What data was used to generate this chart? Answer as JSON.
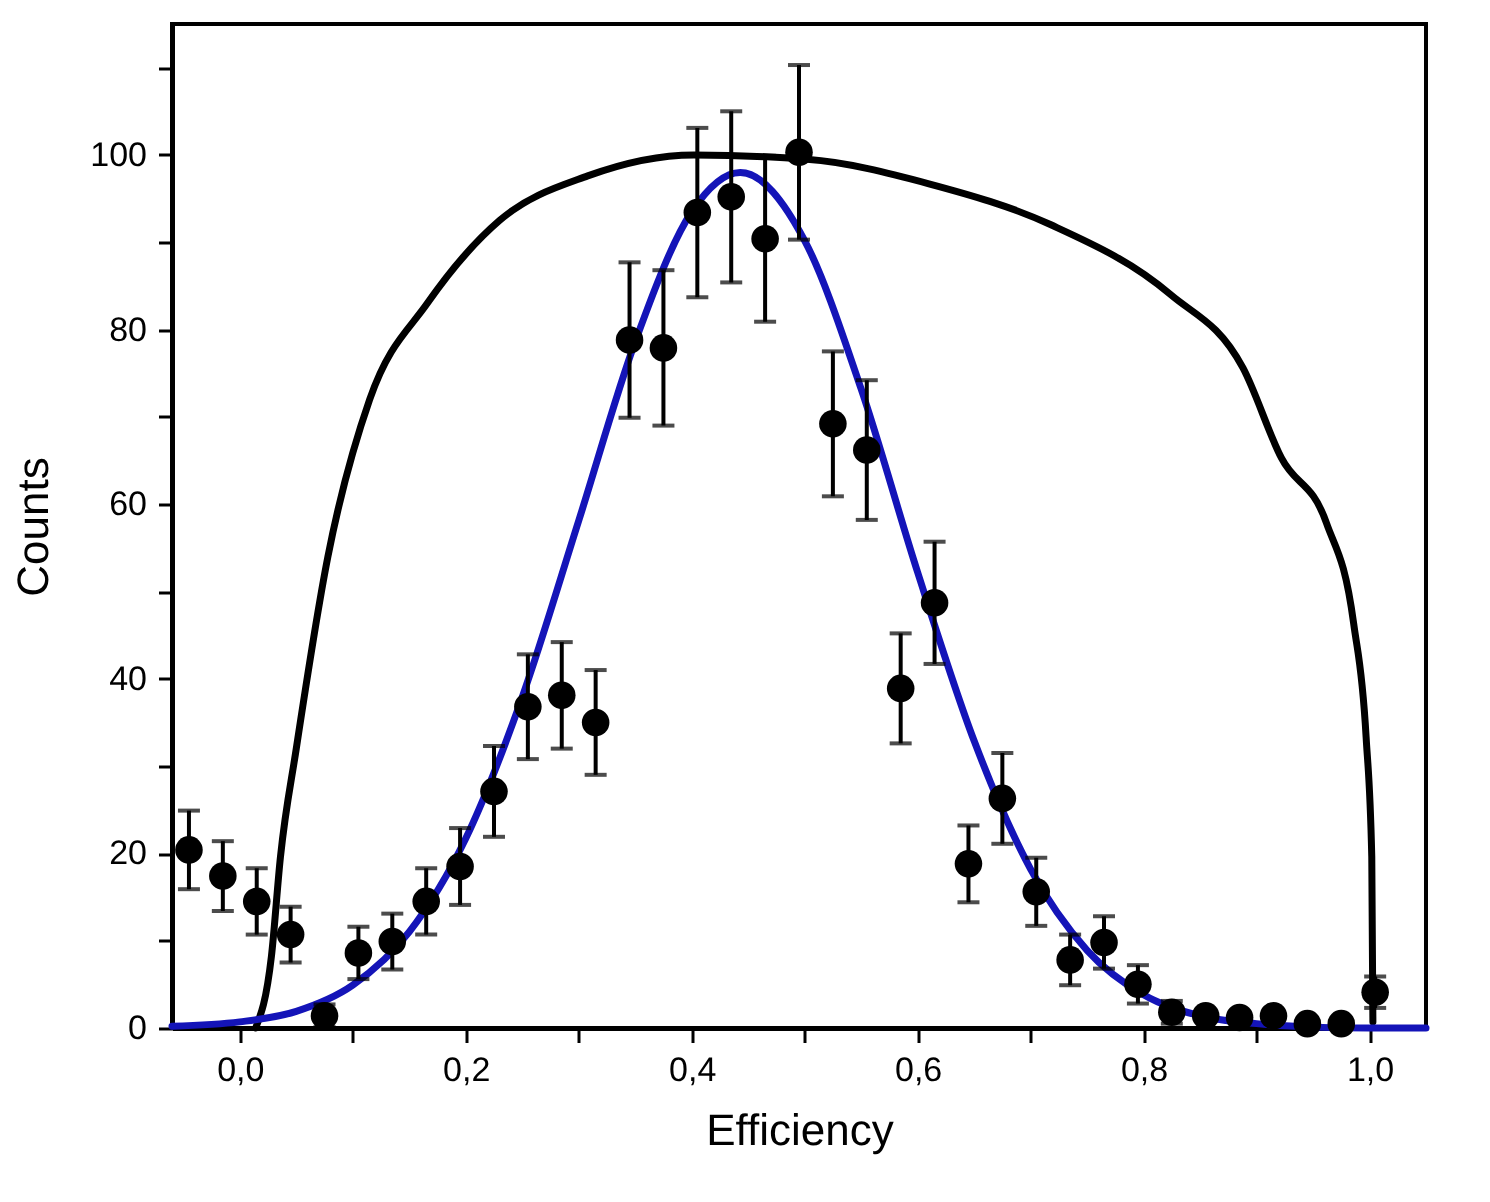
{
  "chart_data": {
    "type": "scatter",
    "xlabel": "Efficiency",
    "ylabel": "Counts",
    "xlim": [
      -0.06,
      1.05
    ],
    "ylim": [
      0,
      115
    ],
    "xticks": [
      {
        "value": 0,
        "label": "0,0"
      },
      {
        "value": 0.1,
        "label": null
      },
      {
        "value": 0.2,
        "label": "0,2"
      },
      {
        "value": 0.3,
        "label": null
      },
      {
        "value": 0.4,
        "label": "0,4"
      },
      {
        "value": 0.5,
        "label": null
      },
      {
        "value": 0.6,
        "label": "0,6"
      },
      {
        "value": 0.7,
        "label": null
      },
      {
        "value": 0.8,
        "label": "0,8"
      },
      {
        "value": 0.9,
        "label": null
      },
      {
        "value": 1,
        "label": "1,0"
      }
    ],
    "yticks": [
      0,
      {
        "value": 10,
        "label": null
      },
      20,
      {
        "value": 30,
        "label": null
      },
      40,
      {
        "value": 50,
        "label": null
      },
      60,
      {
        "value": 70,
        "label": null
      },
      80,
      {
        "value": 90,
        "label": null
      },
      100,
      {
        "value": 110,
        "label": null
      }
    ],
    "grid": false,
    "series": [
      {
        "type": "line",
        "color": "#000000",
        "line_style": "solid",
        "marker": "none",
        "x": [
          0.014,
          0.028,
          0.036,
          0.05,
          0.078,
          0.115,
          0.166,
          0.23,
          0.308,
          0.402,
          0.502,
          0.61,
          0.718,
          0.824,
          0.888,
          0.922,
          0.962,
          0.986,
          0.997,
          1.002,
          1.003
        ],
        "values": [
          0,
          8.2,
          19.6,
          32,
          54,
          72,
          83,
          92.5,
          97.6,
          100,
          99.5,
          96.7,
          92,
          84,
          75.6,
          65.3,
          57.8,
          46.3,
          33.3,
          19.6,
          0.7
        ]
      },
      {
        "type": "line",
        "color": "#1414b8",
        "line_style": "solid",
        "marker": "none",
        "x": [
          -0.06,
          0,
          0.05,
          0.1,
          0.15,
          0.2,
          0.25,
          0.3,
          0.35,
          0.4,
          0.443,
          0.5,
          0.55,
          0.6,
          0.65,
          0.7,
          0.75,
          0.8,
          0.85,
          0.9,
          0.95,
          1,
          1.05
        ],
        "values": [
          0.2,
          0.7,
          1.9,
          4.9,
          11,
          21.7,
          37.9,
          58.1,
          78.6,
          93.5,
          98,
          90.2,
          73.2,
          52.2,
          32.9,
          18.2,
          8.9,
          3.8,
          1.4,
          0.5,
          0.1,
          0,
          0
        ]
      },
      {
        "color": "#000000",
        "marker": "circle",
        "x": [
          -0.045,
          -0.015,
          0.015,
          0.045,
          0.075,
          0.105,
          0.135,
          0.165,
          0.195,
          0.225,
          0.255,
          0.285,
          0.315,
          0.345,
          0.375,
          0.405,
          0.435,
          0.465,
          0.495,
          0.525,
          0.555,
          0.585,
          0.615,
          0.645,
          0.675,
          0.705,
          0.735,
          0.765,
          0.795,
          0.825,
          0.855,
          0.885,
          0.915,
          0.945,
          0.975,
          1.005
        ],
        "values": [
          20.4,
          17.4,
          14.5,
          10.7,
          1.4,
          8.6,
          9.9,
          14.5,
          18.5,
          27.1,
          36.8,
          38.1,
          35,
          78.8,
          77.9,
          93.4,
          95.2,
          90.4,
          100.3,
          69.2,
          66.2,
          38.9,
          48.7,
          18.8,
          26.3,
          15.6,
          7.8,
          9.8,
          5,
          1.8,
          1.4,
          1.2,
          1.4,
          0.5,
          0.5,
          4.1
        ],
        "errors": [
          4.5,
          4,
          3.8,
          3.2,
          1.3,
          3,
          3.2,
          3.8,
          4.4,
          5.2,
          6,
          6.1,
          6,
          8.9,
          8.9,
          9.7,
          9.8,
          9.5,
          10,
          8.3,
          8,
          6.3,
          7,
          4.4,
          5.2,
          3.9,
          2.9,
          3,
          2.2,
          1.3,
          null,
          null,
          null,
          null,
          null,
          1.8
        ]
      }
    ]
  }
}
